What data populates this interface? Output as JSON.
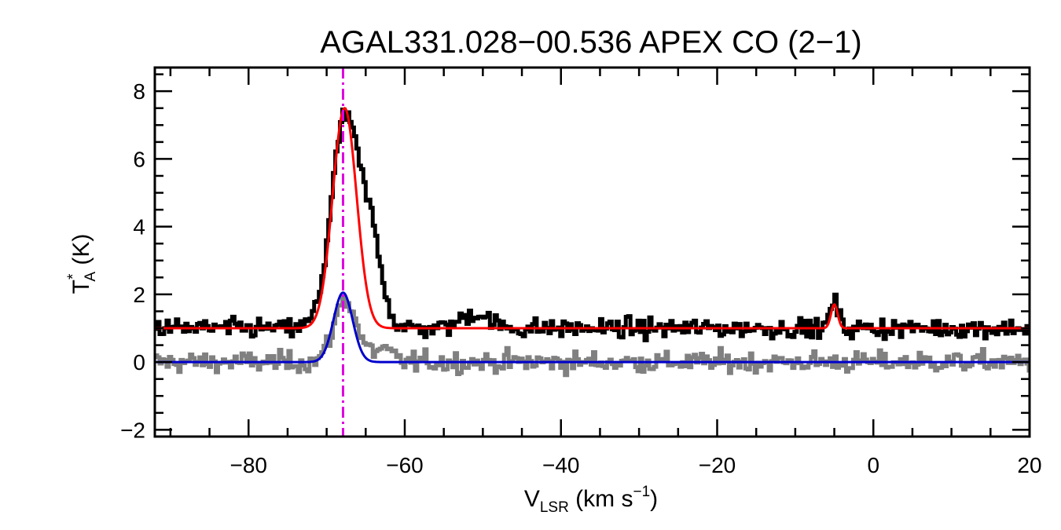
{
  "chart_data": {
    "type": "line",
    "title": "AGAL331.028−00.536  APEX CO (2−1)",
    "xlabel": {
      "main": "V",
      "sub": "LSR",
      "unit_pre": " (km s",
      "sup": "−1",
      "unit_post": ")"
    },
    "ylabel": {
      "main": "T",
      "sup": "*",
      "sub": "A",
      "unit": " (K)"
    },
    "xlim": [
      -92,
      20
    ],
    "ylim": [
      -2.2,
      8.7
    ],
    "xticks": [
      -80,
      -60,
      -40,
      -20,
      0,
      20
    ],
    "xtick_labels": [
      "−80",
      "−60",
      "−40",
      "−20",
      "0",
      "20"
    ],
    "yticks": [
      -2,
      0,
      2,
      4,
      6,
      8
    ],
    "ytick_labels": [
      "−2",
      "0",
      "2",
      "4",
      "6",
      "8"
    ],
    "grid": false,
    "vline": {
      "x": -67.9,
      "color": "#e000e0",
      "style": "dash-dot"
    },
    "series": [
      {
        "kind": "observed-spectrum",
        "color": "#000000",
        "offset": 1.0,
        "noise_rms": 0.14,
        "components": [
          {
            "center": -67.6,
            "amp": 6.2,
            "fwhm": 4.2
          },
          {
            "center": -64.2,
            "amp": 2.3,
            "fwhm": 3.2
          },
          {
            "center": -51.0,
            "amp": 0.45,
            "fwhm": 4.0
          },
          {
            "center": -5.0,
            "amp": 0.8,
            "fwhm": 1.2
          }
        ]
      },
      {
        "kind": "residual-spectrum",
        "color": "#808080",
        "offset": 0.0,
        "noise_rms": 0.15,
        "components": [
          {
            "center": -67.6,
            "amp": 1.85,
            "fwhm": 3.4
          },
          {
            "center": -63.0,
            "amp": 0.35,
            "fwhm": 3.0
          }
        ]
      },
      {
        "kind": "fit",
        "color": "#ff0000",
        "offset": 1.0,
        "components": [
          {
            "center": -67.7,
            "amp": 6.5,
            "fwhm": 3.6
          },
          {
            "center": -5.0,
            "amp": 0.7,
            "fwhm": 1.0
          }
        ]
      },
      {
        "kind": "fit",
        "color": "#0000cc",
        "offset": 0.0,
        "components": [
          {
            "center": -67.9,
            "amp": 2.05,
            "fwhm": 2.9
          }
        ]
      }
    ],
    "channel_width": 0.3
  }
}
